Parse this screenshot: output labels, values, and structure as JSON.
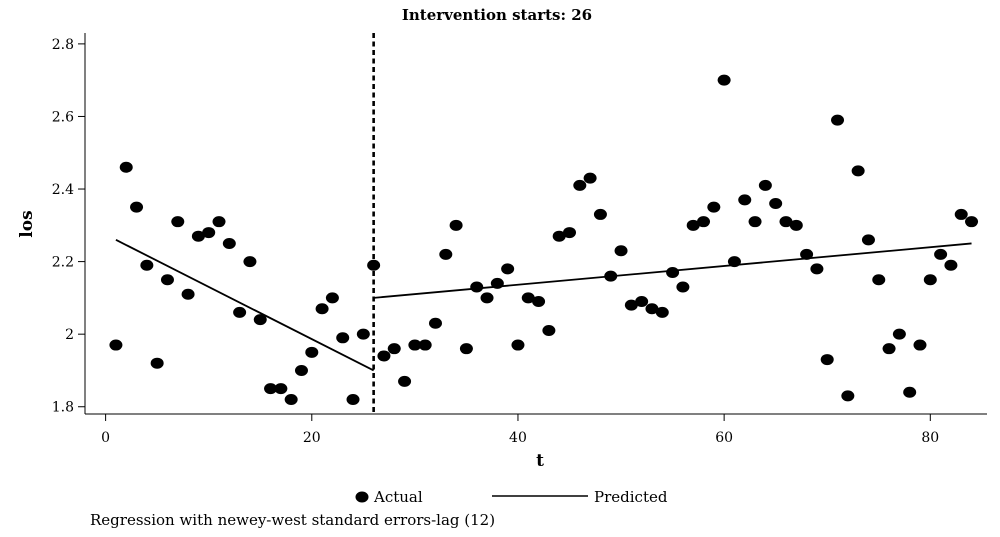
{
  "chart_data": {
    "type": "scatter",
    "title": "Intervention starts: 26",
    "xlabel": "t",
    "ylabel": "los",
    "xlim": [
      -2,
      85.5
    ],
    "ylim": [
      1.78,
      2.83
    ],
    "x_ticks": [
      0,
      20,
      40,
      60,
      80
    ],
    "y_ticks": [
      1.8,
      2,
      2.2,
      2.4,
      2.6,
      2.8
    ],
    "y_tick_labels": [
      "1.8",
      "2",
      "2.2",
      "2.4",
      "2.6",
      "2.8"
    ],
    "intervention_x": 26,
    "grid": false,
    "legend_position": "bottom",
    "note": "Regression with newey-west standard errors-lag (12)",
    "series": [
      {
        "name": "Actual",
        "kind": "points",
        "color": "#000000",
        "x": [
          1,
          2,
          3,
          4,
          5,
          6,
          7,
          8,
          9,
          10,
          11,
          12,
          13,
          14,
          15,
          16,
          17,
          18,
          19,
          20,
          21,
          22,
          23,
          24,
          25,
          26,
          27,
          28,
          29,
          30,
          31,
          32,
          33,
          34,
          35,
          36,
          37,
          38,
          39,
          40,
          41,
          42,
          43,
          44,
          45,
          46,
          47,
          48,
          49,
          50,
          51,
          52,
          53,
          54,
          55,
          56,
          57,
          58,
          59,
          60,
          61,
          62,
          63,
          64,
          65,
          66,
          67,
          68,
          69,
          70,
          71,
          72,
          73,
          74,
          75,
          76,
          77,
          78,
          79,
          80,
          81,
          82,
          83,
          84
        ],
        "y": [
          1.97,
          2.46,
          2.35,
          2.19,
          1.92,
          2.15,
          2.31,
          2.11,
          2.27,
          2.28,
          2.31,
          2.25,
          2.06,
          2.2,
          2.04,
          1.85,
          1.85,
          1.82,
          1.9,
          1.95,
          2.07,
          2.1,
          1.99,
          1.82,
          2.0,
          2.19,
          1.94,
          1.96,
          1.87,
          1.97,
          1.97,
          2.03,
          2.22,
          2.3,
          1.96,
          2.13,
          2.1,
          2.14,
          2.18,
          1.97,
          2.1,
          2.09,
          2.01,
          2.27,
          2.28,
          2.41,
          2.43,
          2.33,
          2.16,
          2.23,
          2.08,
          2.09,
          2.07,
          2.06,
          2.17,
          2.13,
          2.3,
          2.31,
          2.35,
          2.7,
          2.2,
          2.37,
          2.31,
          2.41,
          2.36,
          2.31,
          2.3,
          2.22,
          2.18,
          1.93,
          2.59,
          1.83,
          2.45,
          2.26,
          2.15,
          1.96,
          2.0,
          1.84,
          1.97,
          2.15,
          2.22,
          2.19,
          2.33,
          2.31
        ]
      },
      {
        "name": "Predicted",
        "kind": "line",
        "color": "#000000",
        "segments": [
          {
            "x": [
              1,
              26
            ],
            "y": [
              2.26,
              1.9
            ]
          },
          {
            "x": [
              26,
              84
            ],
            "y": [
              2.1,
              2.25
            ]
          }
        ]
      }
    ]
  }
}
